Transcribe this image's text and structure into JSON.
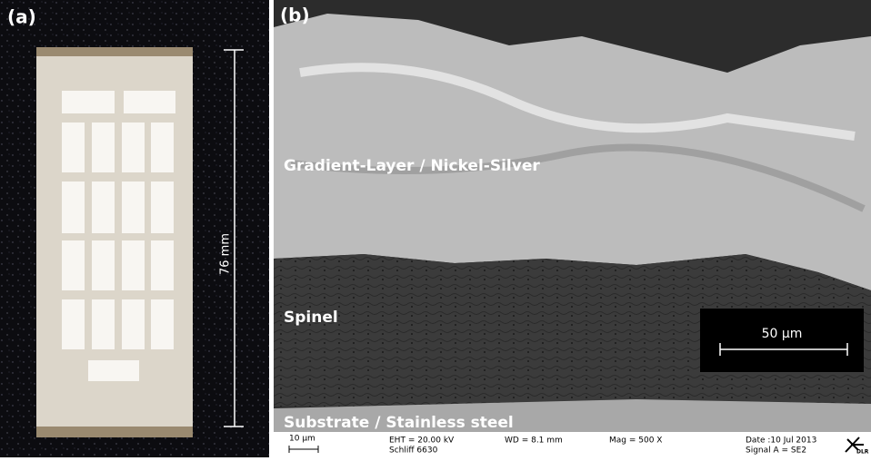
{
  "panel_a": {
    "label": "(a)",
    "dimension": "76 mm"
  },
  "panel_b": {
    "label": "(b)",
    "layers": [
      "Gradient-Layer / Nickel-Silver",
      "Spinel",
      "Substrate / Stainless steel"
    ],
    "scale_bar": "50 µm",
    "info_bar": {
      "small_scale": "10 µm",
      "eht": "EHT = 20.00 kV",
      "sample": "Schliff 6630",
      "wd": "WD = 8.1 mm",
      "mag": "Mag =    500 X",
      "date": "Date :10 Jul 2013",
      "signal": "Signal A = SE2",
      "logo": "DLR"
    }
  }
}
